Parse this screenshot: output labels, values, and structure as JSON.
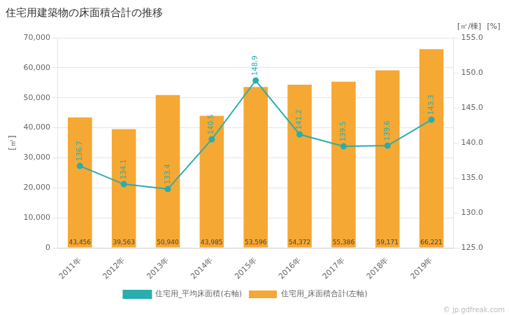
{
  "chart_data": {
    "type": "bar",
    "title": "住宅用建築物の床面積合計の推移",
    "categories": [
      "2011年",
      "2012年",
      "2013年",
      "2014年",
      "2015年",
      "2016年",
      "2017年",
      "2018年",
      "2019年"
    ],
    "ylabel": "[㎡]",
    "y2label": "[㎡/棟]",
    "annotations": [
      "[%]",
      "© jp.gdfreak.com"
    ],
    "ylim": [
      0,
      70000
    ],
    "yticks": [
      0,
      {
        "value": 10000,
        "label": "10,000"
      },
      {
        "value": 20000,
        "label": "20,000"
      },
      {
        "value": 30000,
        "label": "30,000"
      },
      {
        "value": 40000,
        "label": "40,000"
      },
      {
        "value": 50000,
        "label": "50,000"
      },
      {
        "value": 60000,
        "label": "60,000"
      },
      {
        "value": 70000,
        "label": "70,000"
      }
    ],
    "y2lim": [
      125.0,
      155.0
    ],
    "y2ticks": [
      {
        "value": 125,
        "label": "125.0"
      },
      {
        "value": 130,
        "label": "130.0"
      },
      {
        "value": 135,
        "label": "135.0"
      },
      {
        "value": 140,
        "label": "140.0"
      },
      {
        "value": 145,
        "label": "145.0"
      },
      {
        "value": 150,
        "label": "150.0"
      },
      {
        "value": 155,
        "label": "155.0"
      }
    ],
    "grid": true,
    "legend": "bottom",
    "data_labels": true,
    "series": [
      {
        "name": "住宅用_床面積合計(左軸)",
        "type": "bar",
        "color": "#F5A833",
        "values": [
          43456,
          39563,
          50940,
          43985,
          53596,
          54372,
          55386,
          59171,
          66221
        ],
        "value_labels": [
          "43,456",
          "39,563",
          "50,940",
          "43,985",
          "53,596",
          "54,372",
          "55,386",
          "59,171",
          "66,221"
        ]
      },
      {
        "name": "住宅用_平均床面積(右軸)",
        "type": "line",
        "color": "#2AADAD",
        "axis": "y2",
        "marker": "circle",
        "values": [
          136.7,
          134.1,
          133.4,
          140.5,
          148.9,
          141.2,
          139.5,
          139.6,
          143.3
        ]
      }
    ]
  }
}
